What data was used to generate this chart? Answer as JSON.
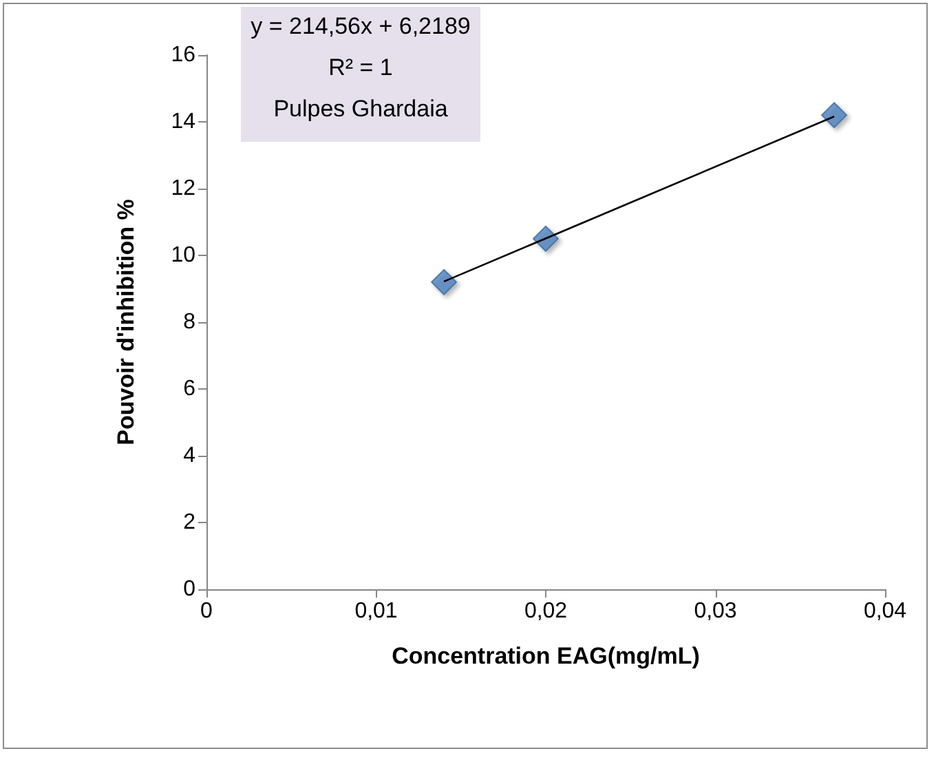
{
  "chart_data": {
    "type": "scatter",
    "xlabel": "Concentration EAG(mg/mL)",
    "ylabel": "Pouvoir d'inhibition %",
    "annotations": [
      "y = 214,56x + 6,2189",
      "R² = 1",
      "Pulpes Ghardaia"
    ],
    "xlim": [
      0,
      0.04
    ],
    "xticks": [
      0,
      {
        "value": 0.01,
        "label": "0,01"
      },
      {
        "value": 0.02,
        "label": "0,02"
      },
      {
        "value": 0.03,
        "label": "0,03"
      },
      {
        "value": 0.04,
        "label": "0,04"
      }
    ],
    "ylim": [
      0,
      16
    ],
    "yticks": [
      0,
      2,
      4,
      6,
      8,
      10,
      12,
      14,
      16
    ],
    "grid": false,
    "series": [
      {
        "color": "#4f81bd",
        "marker": "diamond",
        "x": [
          0.014,
          0.02,
          0.037
        ],
        "values": [
          9.2,
          10.5,
          14.2
        ]
      },
      {
        "type": "line",
        "color": "#000000",
        "marker": "none",
        "line_style": "solid",
        "x": [
          0.014,
          0.037
        ],
        "values": [
          9.22,
          14.16
        ]
      }
    ]
  }
}
